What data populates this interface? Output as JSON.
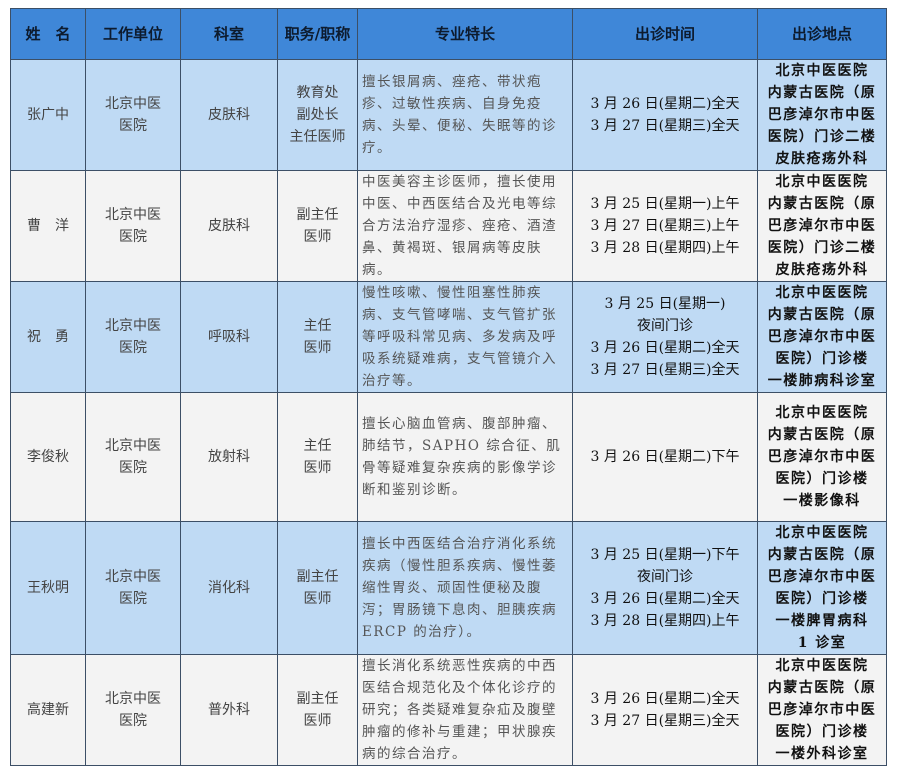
{
  "headers": [
    "姓　名",
    "工作单位",
    "科室",
    "职务/职称",
    "专业特长",
    "出诊时间",
    "出诊地点"
  ],
  "colors": {
    "header_bg": "#3f87d8",
    "row_blue": "#bfdaf4",
    "row_gray": "#f3f3f3"
  },
  "rows": [
    {
      "name": "张广中",
      "unit": "北京中医\n医院",
      "dept": "皮肤科",
      "title": "教育处\n副处长\n主任医师",
      "specialty": "擅长银屑病、痤疮、带状疱疹、过敏性疾病、自身免疫病、头晕、便秘、失眠等的诊疗。",
      "time": "3 月 26 日(星期二)全天\n3 月 27 日(星期三)全天",
      "location": "北京中医医院\n内蒙古医院（原巴彦淖尔市中医医院）门诊二楼\n皮肤疮疡外科"
    },
    {
      "name": "曹　洋",
      "unit": "北京中医\n医院",
      "dept": "皮肤科",
      "title": "副主任\n医师",
      "specialty": "中医美容主诊医师，擅长使用中医、中西医结合及光电等综合方法治疗湿疹、痤疮、酒渣鼻、黄褐斑、银屑病等皮肤病。",
      "time": "3 月 25 日(星期一)上午\n3 月 27 日(星期三)上午\n3 月 28 日(星期四)上午",
      "location": "北京中医医院\n内蒙古医院（原巴彦淖尔市中医医院）门诊二楼\n皮肤疮疡外科"
    },
    {
      "name": "祝　勇",
      "unit": "北京中医\n医院",
      "dept": "呼吸科",
      "title": "主任\n医师",
      "specialty": "慢性咳嗽、慢性阻塞性肺疾病、支气管哮喘、支气管扩张等呼吸科常见病、多发病及呼吸系统疑难病，支气管镜介入治疗等。",
      "time": "3 月 25 日(星期一)\n夜间门诊\n3 月 26 日(星期二)全天\n3 月 27 日(星期三)全天",
      "location": "北京中医医院\n内蒙古医院（原巴彦淖尔市中医医院）门诊楼\n一楼肺病科诊室"
    },
    {
      "name": "李俊秋",
      "unit": "北京中医\n医院",
      "dept": "放射科",
      "title": "主任\n医师",
      "specialty": "擅长心脑血管病、腹部肿瘤、肺结节，SAPHO 综合征、肌骨等疑难复杂疾病的影像学诊断和鉴别诊断。",
      "time": "3 月 26 日(星期二)下午",
      "location": "北京中医医院\n内蒙古医院（原巴彦淖尔市中医医院）门诊楼\n一楼影像科"
    },
    {
      "name": "王秋明",
      "unit": "北京中医\n医院",
      "dept": "消化科",
      "title": "副主任\n医师",
      "specialty": "擅长中西医结合治疗消化系统疾病（慢性胆系疾病、慢性萎缩性胃炎、顽固性便秘及腹泻；胃肠镜下息肉、胆胰疾病 ERCP 的治疗）。",
      "time": "3 月 25 日(星期一)下午\n夜间门诊\n3 月 26 日(星期二)全天\n3 月 28 日(星期四)上午",
      "location": "北京中医医院\n内蒙古医院（原巴彦淖尔市中医医院）门诊楼\n一楼脾胃病科\n1 诊室"
    },
    {
      "name": "高建新",
      "unit": "北京中医\n医院",
      "dept": "普外科",
      "title": "副主任\n医师",
      "specialty": "擅长消化系统恶性疾病的中西医结合规范化及个体化诊疗的研究；各类疑难复杂疝及腹壁肿瘤的修补与重建；甲状腺疾病的综合治疗。",
      "time": "3 月 26 日(星期二)全天\n3 月 27 日(星期三)全天",
      "location": "北京中医医院\n内蒙古医院（原巴彦淖尔市中医医院）门诊楼\n一楼外科诊室"
    }
  ]
}
